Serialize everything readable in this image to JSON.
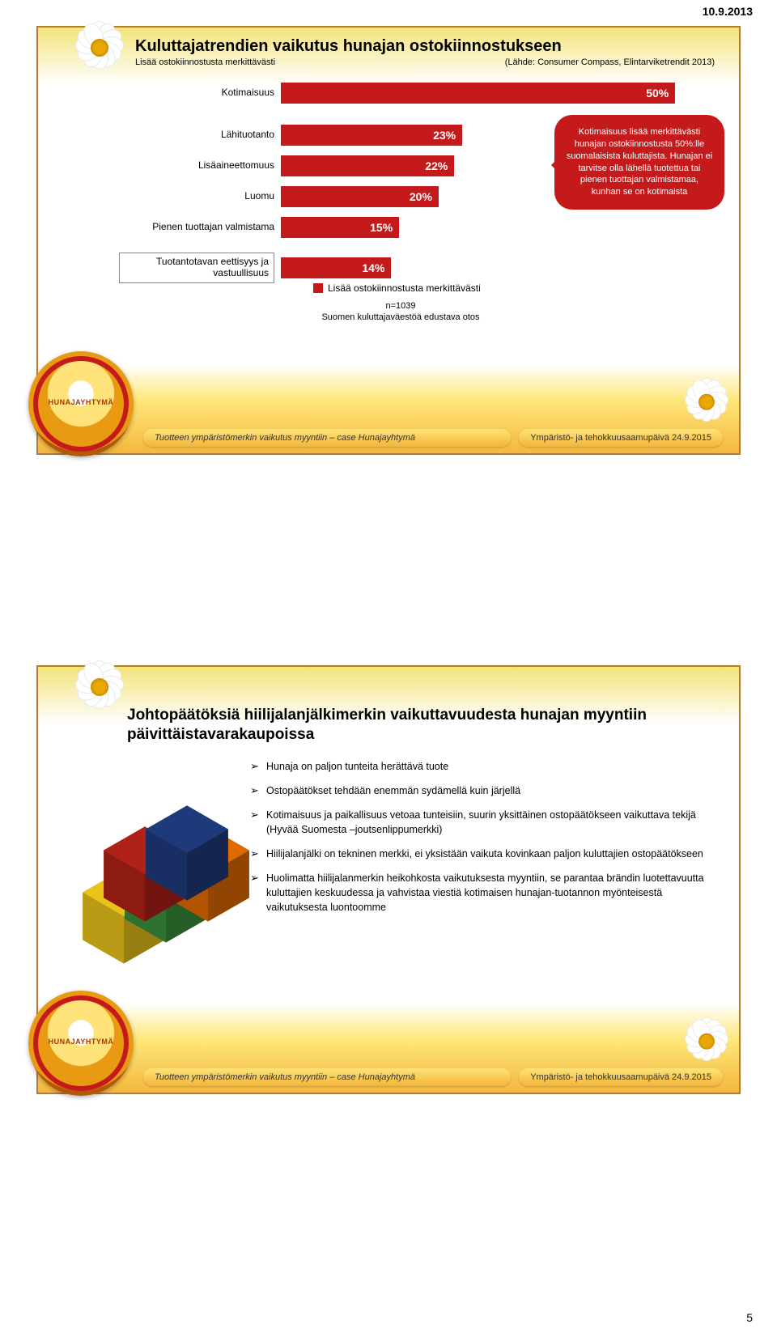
{
  "page_header_date": "10.9.2013",
  "page_number": "5",
  "slide1": {
    "title": "Kuluttajatrendien vaikutus hunajan ostokiinnostukseen",
    "subtitle_left": "Lisää ostokiinnostusta merkittävästi",
    "subtitle_right": "(Lähde: Consumer Compass, Elintarviketrendit 2013)",
    "chart": {
      "type": "bar",
      "bar_color": "#c51a1c",
      "value_text_color": "#ffffff",
      "max_percent": 55,
      "rows": [
        {
          "label": "Kotimaisuus",
          "value": 50,
          "display": "50%"
        },
        {
          "label": "Lähituotanto",
          "value": 23,
          "display": "23%"
        },
        {
          "label": "Lisäaineettomuus",
          "value": 22,
          "display": "22%"
        },
        {
          "label": "Luomu",
          "value": 20,
          "display": "20%"
        },
        {
          "label": "Pienen tuottajan valmistama",
          "value": 15,
          "display": "15%"
        },
        {
          "label": "Tuotantotavan eettisyys ja vastuullisuus",
          "value": 14,
          "display": "14%",
          "boxed": true
        }
      ],
      "legend_label": "Lisää ostokiinnostusta merkittävästi",
      "sample_line1": "n=1039",
      "sample_line2": "Suomen kuluttajaväestöä edustava otos"
    },
    "callout_text": "Kotimaisuus lisää merkittävästi hunajan ostokiinnostusta 50%:lle suomalaisista kuluttajista. Hunajan ei tarvitse olla lähellä tuotettua tai pienen tuottajan valmistamaa, kunhan se on kotimaista",
    "badge_text": "HUNAJAYHTYMÄ",
    "footer_left": "Tuotteen ympäristömerkin vaikutus myyntiin – case Hunajayhtymä",
    "footer_right": "Ympäristö- ja tehokkuusaamupäivä 24.9.2015"
  },
  "slide2": {
    "title": "Johtopäätöksiä hiilijalanjälkimerkin vaikuttavuudesta hunajan myyntiin päivittäistavarakaupoissa",
    "bullets": [
      "Hunaja on paljon tunteita herättävä tuote",
      "Ostopäätökset tehdään enemmän sydämellä kuin järjellä",
      "Kotimaisuus ja paikallisuus vetoaa tunteisiin, suurin yksittäinen ostopäätökseen vaikuttava tekijä (Hyvää Suomesta –joutsenlippumerkki)",
      "Hiilijalanjälki on tekninen merkki, ei yksistään vaikuta kovinkaan paljon kuluttajien ostopäätökseen",
      "Huolimatta hiilijalanmerkin heikohkosta vaikutuksesta myyntiin, se parantaa brändin luotettavuutta kuluttajien keskuudessa ja vahvistaa viestiä kotimaisen hunajan-tuotannon myönteisestä vaikutuksesta luontoomme"
    ],
    "cubes": {
      "colors": [
        "#e9c21a",
        "#3b8e3b",
        "#e06a00",
        "#b02118",
        "#1f3a7a"
      ]
    },
    "badge_text": "HUNAJAYHTYMÄ",
    "footer_left": "Tuotteen ympäristömerkin vaikutus myyntiin – case Hunajayhtymä",
    "footer_right": "Ympäristö- ja tehokkuusaamupäivä 24.9.2015"
  }
}
